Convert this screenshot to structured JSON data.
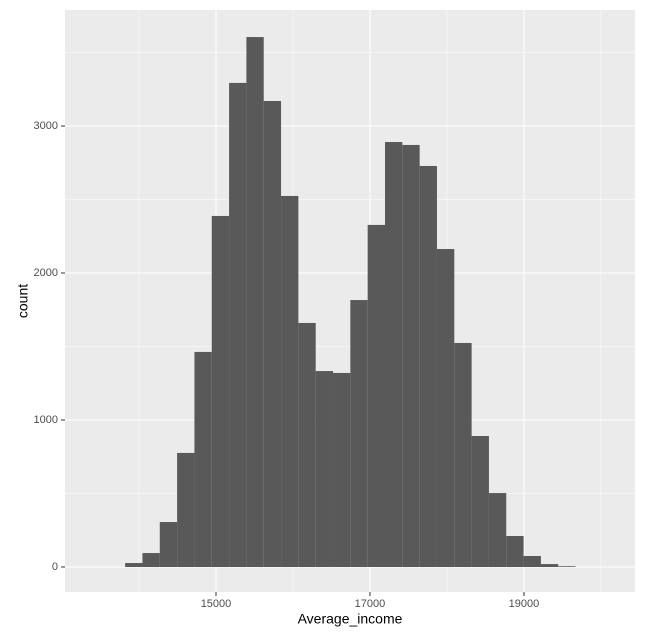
{
  "chart_data": {
    "type": "histogram",
    "x_label": "Average_income",
    "y_label": "count",
    "bins": [
      13820,
      14045,
      14270,
      14495,
      14720,
      14945,
      15170,
      15395,
      15620,
      15845,
      16070,
      16295,
      16520,
      16745,
      16970,
      17195,
      17420,
      17645,
      17870,
      18095,
      18320,
      18545,
      18770,
      18995,
      19220,
      19445,
      19670
    ],
    "values": [
      27,
      95,
      306,
      776,
      1463,
      2388,
      3293,
      3605,
      3170,
      2524,
      1660,
      1333,
      1320,
      1816,
      2327,
      2891,
      2871,
      2728,
      2163,
      1524,
      891,
      503,
      211,
      75,
      20,
      5
    ],
    "color": "#595959",
    "xlim": [
      13039,
      20442
    ],
    "ylim": [
      -170,
      3789
    ],
    "xticks": [
      15000,
      17000,
      19000
    ],
    "yticks": [
      0,
      1000,
      2000,
      3000
    ],
    "x_minor_ticks": [
      14000,
      16000,
      18000,
      20000
    ],
    "y_minor_ticks": [
      500,
      1500,
      2500,
      3500
    ],
    "grid": true,
    "panel_color": "#ebebeb"
  }
}
